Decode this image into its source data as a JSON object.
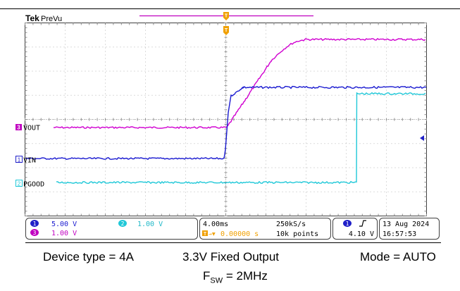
{
  "header": {
    "brand": "Tek",
    "mode": "PreVu",
    "trigger_marker": "T"
  },
  "channels": [
    {
      "id": "3",
      "label": "VOUT",
      "color": "#d000d0",
      "marker_color": "#c000c0"
    },
    {
      "id": "1",
      "label": "VIN",
      "color": "#1a1ad0",
      "marker_color": "#2020c8"
    },
    {
      "id": "2",
      "label": "PGOOD",
      "color": "#20c8d8",
      "marker_color": "#20c8d8"
    }
  ],
  "status_bar": {
    "ch1_scale": "5.00 V",
    "ch2_scale": "1.00 V",
    "ch3_scale": "1.00 V",
    "timebase": "4.00ms",
    "sample_rate": "250kS/s",
    "trigger_position": "0.00000 s",
    "record_length": "10k points",
    "trigger_channel": "1",
    "trigger_level": "4.10 V",
    "date": "13 Aug 2024",
    "time": "16:57:53"
  },
  "caption": {
    "device_type": "Device type = 4A",
    "output": "3.3V Fixed Output",
    "mode": "Mode = AUTO",
    "fsw_prefix": "F",
    "fsw_sub": "SW",
    "fsw_value": " = 2MHz"
  },
  "colors": {
    "vout": "#d000d0",
    "vin": "#1a1ad0",
    "pgood": "#20c8d8",
    "trigger": "#f0a000",
    "grid": "#b0b0b0"
  }
}
